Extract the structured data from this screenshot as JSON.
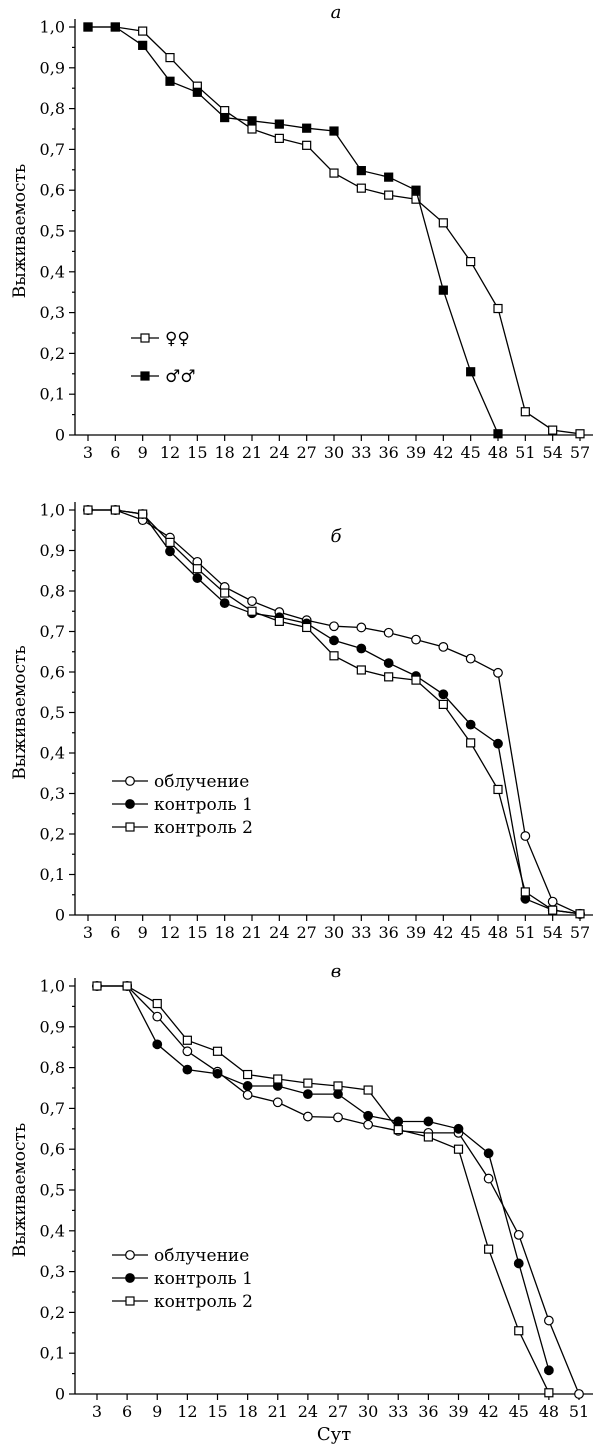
{
  "chart_data": [
    {
      "type": "line",
      "title": "а",
      "ylabel": "Выживаемость",
      "xlabel": "",
      "ylim": [
        0,
        1
      ],
      "xlim": [
        3,
        57
      ],
      "x_ticks": [
        "3",
        "6",
        "9",
        "12",
        "15",
        "18",
        "21",
        "24",
        "27",
        "30",
        "33",
        "36",
        "39",
        "42",
        "45",
        "48",
        "51",
        "54",
        "57"
      ],
      "y_ticks": [
        "0",
        "0,1",
        "0,2",
        "0,3",
        "0,4",
        "0,5",
        "0,6",
        "0,7",
        "0,8",
        "0,9",
        "1,0"
      ],
      "legend_position": "lower-left",
      "series": [
        {
          "name": "♀♀",
          "marker": "square-open",
          "x": [
            3,
            6,
            9,
            12,
            15,
            18,
            21,
            24,
            27,
            30,
            33,
            36,
            39,
            42,
            45,
            48,
            51,
            54,
            57
          ],
          "y": [
            1.0,
            1.0,
            0.99,
            0.925,
            0.855,
            0.795,
            0.75,
            0.727,
            0.71,
            0.642,
            0.605,
            0.588,
            0.578,
            0.52,
            0.425,
            0.31,
            0.057,
            0.012,
            0.003
          ]
        },
        {
          "name": "♂♂",
          "marker": "square-filled",
          "x": [
            3,
            6,
            9,
            12,
            15,
            18,
            21,
            24,
            27,
            30,
            33,
            36,
            39,
            42,
            45,
            48
          ],
          "y": [
            1.0,
            1.0,
            0.955,
            0.867,
            0.84,
            0.778,
            0.77,
            0.762,
            0.752,
            0.745,
            0.648,
            0.632,
            0.6,
            0.355,
            0.155,
            0.003
          ]
        }
      ]
    },
    {
      "type": "line",
      "title": "б",
      "ylabel": "Выживаемость",
      "xlabel": "",
      "ylim": [
        0,
        1
      ],
      "xlim": [
        3,
        57
      ],
      "x_ticks": [
        "3",
        "6",
        "9",
        "12",
        "15",
        "18",
        "21",
        "24",
        "27",
        "30",
        "33",
        "36",
        "39",
        "42",
        "45",
        "48",
        "51",
        "54",
        "57"
      ],
      "y_ticks": [
        "0",
        "0,1",
        "0,2",
        "0,3",
        "0,4",
        "0,5",
        "0,6",
        "0,7",
        "0,8",
        "0,9",
        "1,0"
      ],
      "legend_position": "lower-left",
      "series": [
        {
          "name": "облучение",
          "marker": "circle-open",
          "x": [
            3,
            6,
            9,
            12,
            15,
            18,
            21,
            24,
            27,
            30,
            33,
            36,
            39,
            42,
            45,
            48,
            51,
            54,
            57
          ],
          "y": [
            1.0,
            1.0,
            0.975,
            0.932,
            0.872,
            0.81,
            0.775,
            0.748,
            0.728,
            0.713,
            0.71,
            0.697,
            0.68,
            0.662,
            0.633,
            0.598,
            0.195,
            0.033,
            0.002
          ]
        },
        {
          "name": "контроль 1",
          "marker": "circle-filled",
          "x": [
            3,
            6,
            9,
            12,
            15,
            18,
            21,
            24,
            27,
            30,
            33,
            36,
            39,
            42,
            45,
            48,
            51,
            54,
            57
          ],
          "y": [
            1.0,
            1.0,
            0.99,
            0.898,
            0.832,
            0.77,
            0.745,
            0.735,
            0.72,
            0.678,
            0.658,
            0.622,
            0.59,
            0.545,
            0.47,
            0.423,
            0.04,
            0.012,
            0.003
          ]
        },
        {
          "name": "контроль 2",
          "marker": "square-open",
          "x": [
            3,
            6,
            9,
            12,
            15,
            18,
            21,
            24,
            27,
            30,
            33,
            36,
            39,
            42,
            45,
            48,
            51,
            54,
            57
          ],
          "y": [
            1.0,
            1.0,
            0.99,
            0.92,
            0.855,
            0.795,
            0.75,
            0.725,
            0.71,
            0.64,
            0.605,
            0.588,
            0.58,
            0.52,
            0.425,
            0.31,
            0.057,
            0.012,
            0.003
          ]
        }
      ]
    },
    {
      "type": "line",
      "title": "в",
      "ylabel": "Выживаемость",
      "xlabel": "Сут",
      "ylim": [
        0,
        1
      ],
      "xlim": [
        3,
        51
      ],
      "x_ticks": [
        "3",
        "6",
        "9",
        "12",
        "15",
        "18",
        "21",
        "24",
        "27",
        "30",
        "33",
        "36",
        "39",
        "42",
        "45",
        "48",
        "51"
      ],
      "y_ticks": [
        "0",
        "0,1",
        "0,2",
        "0,3",
        "0,4",
        "0,5",
        "0,6",
        "0,7",
        "0,8",
        "0,9",
        "1,0"
      ],
      "legend_position": "lower-left",
      "series": [
        {
          "name": "облучение",
          "marker": "circle-open",
          "x": [
            3,
            6,
            9,
            12,
            15,
            18,
            21,
            24,
            27,
            30,
            33,
            36,
            39,
            42,
            45,
            48,
            51
          ],
          "y": [
            1.0,
            1.0,
            0.925,
            0.84,
            0.79,
            0.733,
            0.715,
            0.68,
            0.678,
            0.66,
            0.645,
            0.64,
            0.64,
            0.528,
            0.39,
            0.18,
            0.0
          ]
        },
        {
          "name": "контроль 1",
          "marker": "circle-filled",
          "x": [
            3,
            6,
            9,
            12,
            15,
            18,
            21,
            24,
            27,
            30,
            33,
            36,
            39,
            42,
            45,
            48
          ],
          "y": [
            1.0,
            1.0,
            0.857,
            0.795,
            0.785,
            0.755,
            0.755,
            0.735,
            0.735,
            0.682,
            0.668,
            0.668,
            0.65,
            0.59,
            0.32,
            0.058
          ]
        },
        {
          "name": "контроль 2",
          "marker": "square-open",
          "x": [
            3,
            6,
            9,
            12,
            15,
            18,
            21,
            24,
            27,
            30,
            33,
            36,
            39,
            42,
            45,
            48
          ],
          "y": [
            1.0,
            1.0,
            0.957,
            0.867,
            0.84,
            0.783,
            0.772,
            0.762,
            0.755,
            0.745,
            0.648,
            0.63,
            0.6,
            0.355,
            0.155,
            0.003
          ]
        }
      ]
    }
  ]
}
